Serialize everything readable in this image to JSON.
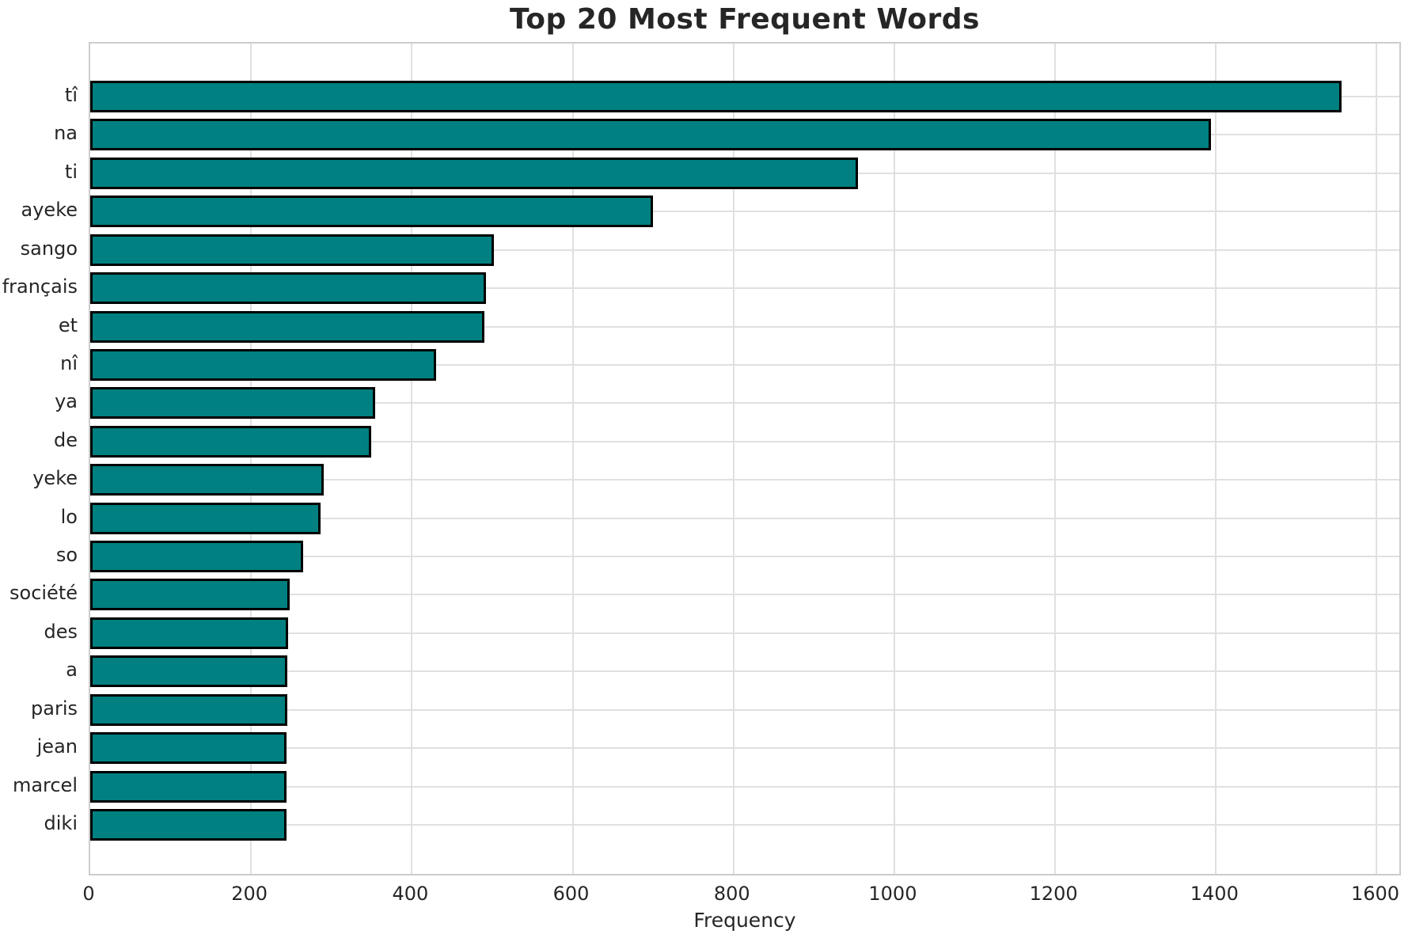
{
  "chart_data": {
    "type": "bar",
    "orientation": "horizontal",
    "title": "Top 20 Most Frequent Words",
    "xlabel": "Frequency",
    "ylabel": "",
    "categories": [
      "tî",
      "na",
      "ti",
      "ayeke",
      "sango",
      "français",
      "et",
      "nî",
      "ya",
      "de",
      "yeke",
      "lo",
      "so",
      "société",
      "des",
      "a",
      "paris",
      "jean",
      "marcel",
      "diki"
    ],
    "values": [
      1556,
      1394,
      955,
      700,
      502,
      492,
      490,
      430,
      354,
      349,
      290,
      286,
      265,
      248,
      246,
      245,
      245,
      244,
      244,
      244
    ],
    "xlim": [
      0,
      1632
    ],
    "x_ticks": [
      0,
      200,
      400,
      600,
      800,
      1000,
      1200,
      1400,
      1600
    ],
    "grid": true,
    "legend": "none",
    "bar_color": "#008080",
    "bar_edge_color": "#000000",
    "grid_color": "#e0e0e0",
    "spine_color": "#cccccc",
    "text_color": "#262626",
    "background_color": "#ffffff"
  }
}
